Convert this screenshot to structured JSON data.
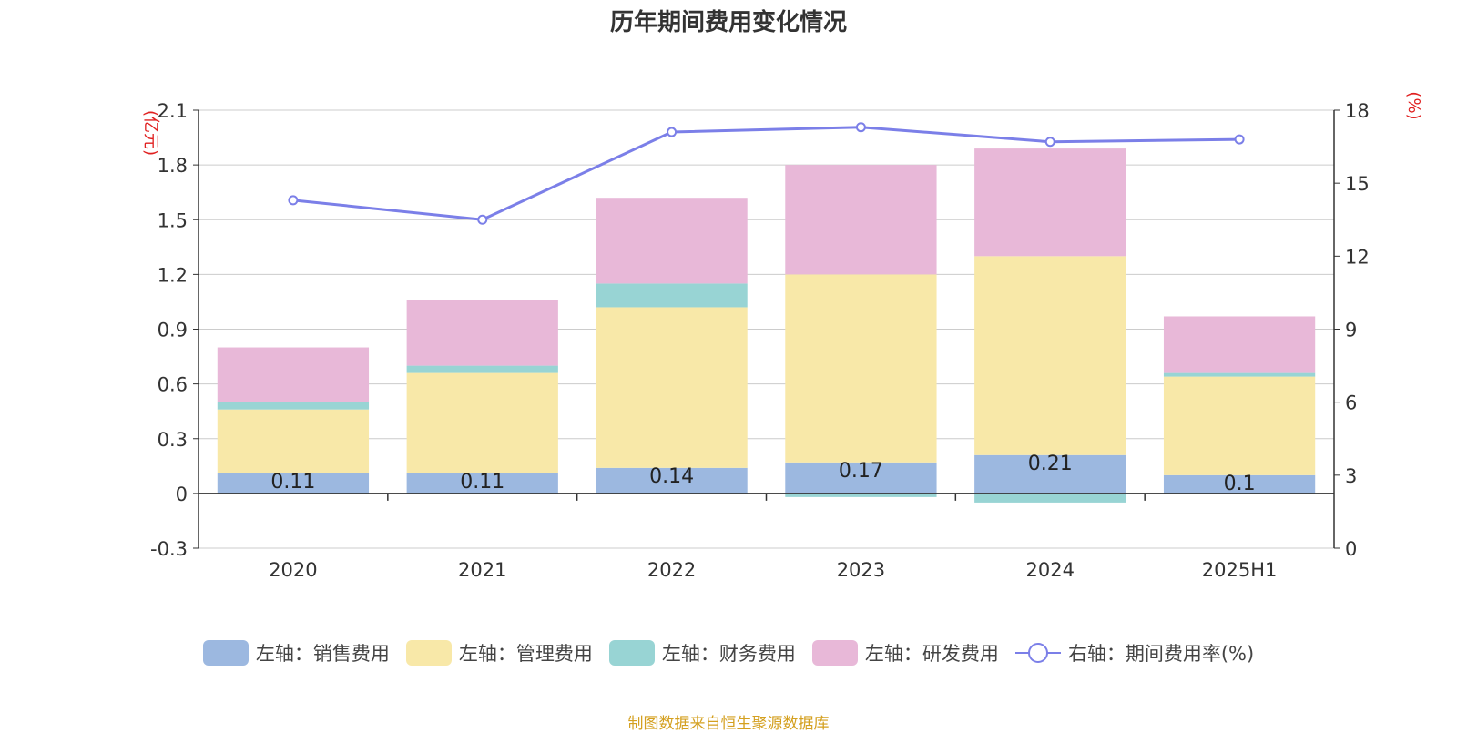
{
  "title": "历年期间费用变化情况",
  "source": "制图数据来自恒生聚源数据库",
  "chart_data": {
    "type": "bar",
    "stacked": true,
    "categories": [
      "2020",
      "2021",
      "2022",
      "2023",
      "2024",
      "2025H1"
    ],
    "left_axis": {
      "unit": "(亿元)",
      "ylim": [
        -0.3,
        2.1
      ],
      "ticks": [
        "-0.3",
        "0",
        "0.3",
        "0.6",
        "0.9",
        "1.2",
        "1.5",
        "1.8",
        "2.1"
      ]
    },
    "right_axis": {
      "unit": "(%)",
      "ylim": [
        0,
        18
      ],
      "ticks": [
        "0",
        "3",
        "6",
        "9",
        "12",
        "15",
        "18"
      ]
    },
    "series": [
      {
        "name": "左轴：销售费用",
        "axis": "left",
        "type": "bar",
        "color": "#9cb8e0",
        "values": [
          0.11,
          0.11,
          0.14,
          0.17,
          0.21,
          0.1
        ],
        "labels": [
          "0.11",
          "0.11",
          "0.14",
          "0.17",
          "0.21",
          "0.1"
        ]
      },
      {
        "name": "左轴：管理费用",
        "axis": "left",
        "type": "bar",
        "color": "#f8e8a8",
        "values": [
          0.35,
          0.55,
          0.88,
          1.03,
          1.09,
          0.54
        ]
      },
      {
        "name": "左轴：财务费用",
        "axis": "left",
        "type": "bar",
        "color": "#98d4d4",
        "values": [
          0.04,
          0.04,
          0.13,
          -0.02,
          -0.05,
          0.02
        ]
      },
      {
        "name": "左轴：研发费用",
        "axis": "left",
        "type": "bar",
        "color": "#e8b8d8",
        "values": [
          0.3,
          0.36,
          0.47,
          0.6,
          0.59,
          0.31
        ]
      },
      {
        "name": "右轴：期间费用率(%)",
        "axis": "right",
        "type": "line",
        "color": "#7b7fe8",
        "values": [
          14.3,
          13.5,
          17.1,
          17.3,
          16.7,
          16.8
        ]
      }
    ],
    "grid": true,
    "legend_position": "bottom"
  }
}
